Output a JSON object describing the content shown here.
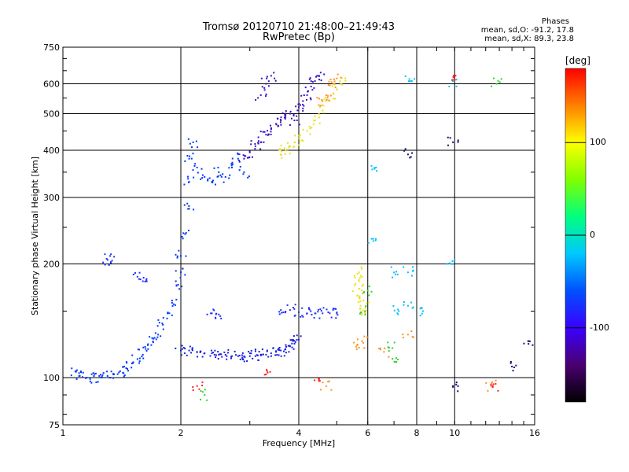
{
  "header": {
    "title_line1": "Tromsø 20120710 21:48:00–21:49:43",
    "title_line2": "RwPretec (Bp)",
    "phase_title": "Phases",
    "phase_line1": "mean, sd,O: -91.2, 17.8",
    "phase_line2": "mean, sd,X:  89.3, 23.8"
  },
  "colorbar": {
    "label": "[deg]",
    "range": [
      -180,
      180
    ],
    "ticks": [
      "100",
      "0",
      "-100"
    ],
    "tick_values": [
      100,
      0,
      -100
    ],
    "colors": [
      "#000000",
      "#4a0070",
      "#3a00ff",
      "#0050ff",
      "#00c8ff",
      "#00ff80",
      "#80ff00",
      "#ffff00",
      "#ff8000",
      "#ff0000"
    ]
  },
  "chart_data": {
    "type": "scatter",
    "title": "Tromsø 20120710 21:48:00–21:49:43 RwPretec (Bp)",
    "xlabel": "Frequency [MHz]",
    "ylabel": "Stationary phase Virtual Height [km]",
    "xscale": "log",
    "yscale": "log",
    "xlim": [
      1,
      16
    ],
    "ylim": [
      75,
      750
    ],
    "xticks": [
      1,
      2,
      4,
      6,
      8,
      10,
      16
    ],
    "xticklabels": [
      "1",
      "2",
      "4",
      "6",
      "8",
      "10",
      "16"
    ],
    "yticks": [
      75,
      100,
      200,
      300,
      400,
      500,
      600,
      750
    ],
    "yticklabels": [
      "75",
      "100",
      "200",
      "300",
      "400",
      "500",
      "600",
      "750"
    ],
    "grid": true,
    "color_meaning": "phase [deg]",
    "series": [
      {
        "color": "#0038ff",
        "points": [
          [
            1.08,
            104
          ],
          [
            1.1,
            101
          ],
          [
            1.15,
            100
          ],
          [
            1.2,
            101
          ],
          [
            1.25,
            100
          ],
          [
            1.3,
            101
          ],
          [
            1.35,
            102
          ],
          [
            1.4,
            104
          ],
          [
            1.45,
            106
          ],
          [
            1.5,
            109
          ],
          [
            1.55,
            112
          ],
          [
            1.6,
            115
          ],
          [
            1.65,
            119
          ],
          [
            1.7,
            124
          ],
          [
            1.75,
            130
          ],
          [
            1.8,
            138
          ],
          [
            1.85,
            148
          ],
          [
            1.9,
            160
          ],
          [
            1.95,
            175
          ],
          [
            2.0,
            190
          ],
          [
            2.0,
            210
          ],
          [
            2.05,
            240
          ],
          [
            2.1,
            280
          ],
          [
            2.1,
            330
          ],
          [
            2.1,
            380
          ],
          [
            2.15,
            420
          ],
          [
            2.2,
            360
          ],
          [
            2.3,
            340
          ],
          [
            2.4,
            330
          ],
          [
            2.5,
            350
          ],
          [
            2.6,
            340
          ],
          [
            2.7,
            360
          ],
          [
            2.8,
            380
          ],
          [
            2.9,
            350
          ]
        ]
      },
      {
        "color": "#1a20e0",
        "points": [
          [
            2.0,
            118
          ],
          [
            2.1,
            118
          ],
          [
            2.2,
            117
          ],
          [
            2.3,
            116
          ],
          [
            2.4,
            116
          ],
          [
            2.5,
            115
          ],
          [
            2.6,
            115
          ],
          [
            2.7,
            114
          ],
          [
            2.8,
            114
          ],
          [
            2.9,
            114
          ],
          [
            3.0,
            114
          ],
          [
            3.1,
            114
          ],
          [
            3.2,
            115
          ],
          [
            3.3,
            115
          ],
          [
            3.4,
            116
          ],
          [
            3.5,
            117
          ],
          [
            3.6,
            118
          ],
          [
            3.7,
            119
          ],
          [
            3.8,
            121
          ],
          [
            3.9,
            123
          ],
          [
            4.0,
            126
          ]
        ]
      },
      {
        "color": "#2030ff",
        "points": [
          [
            2.4,
            148
          ],
          [
            2.5,
            147
          ],
          [
            3.6,
            151
          ],
          [
            3.8,
            151
          ],
          [
            4.0,
            149
          ],
          [
            4.2,
            148
          ],
          [
            4.4,
            148
          ],
          [
            4.6,
            148
          ],
          [
            4.8,
            148
          ],
          [
            5.0,
            148
          ],
          [
            1.3,
            205
          ],
          [
            1.32,
            210
          ],
          [
            1.55,
            185
          ],
          [
            1.6,
            180
          ]
        ]
      },
      {
        "color": "#3a10c0",
        "points": [
          [
            2.9,
            380
          ],
          [
            3.0,
            395
          ],
          [
            3.1,
            410
          ],
          [
            3.2,
            420
          ],
          [
            3.3,
            440
          ],
          [
            3.4,
            455
          ],
          [
            3.5,
            470
          ],
          [
            3.6,
            480
          ],
          [
            3.7,
            490
          ],
          [
            3.8,
            500
          ],
          [
            3.9,
            480
          ],
          [
            4.0,
            520
          ],
          [
            4.1,
            540
          ],
          [
            4.2,
            560
          ],
          [
            4.3,
            590
          ],
          [
            4.4,
            610
          ],
          [
            4.5,
            630
          ],
          [
            3.2,
            560
          ],
          [
            3.3,
            600
          ],
          [
            3.4,
            630
          ]
        ]
      },
      {
        "color": "#e8e020",
        "points": [
          [
            3.6,
            390
          ],
          [
            3.7,
            400
          ],
          [
            3.8,
            410
          ],
          [
            3.9,
            420
          ],
          [
            4.0,
            430
          ],
          [
            4.2,
            450
          ],
          [
            4.4,
            480
          ],
          [
            4.6,
            510
          ],
          [
            4.8,
            540
          ],
          [
            5.0,
            580
          ],
          [
            5.1,
            610
          ],
          [
            5.65,
            165
          ],
          [
            5.7,
            172
          ],
          [
            5.7,
            180
          ],
          [
            5.75,
            155
          ],
          [
            5.8,
            148
          ],
          [
            5.7,
            190
          ],
          [
            5.85,
            160
          ]
        ]
      },
      {
        "color": "#ff9020",
        "points": [
          [
            4.7,
            560
          ],
          [
            4.9,
            600
          ],
          [
            5.0,
            620
          ],
          [
            4.6,
            540
          ],
          [
            5.7,
            120
          ],
          [
            5.8,
            125
          ],
          [
            6.6,
            117
          ],
          [
            7.6,
            130
          ],
          [
            4.7,
            95
          ],
          [
            12.4,
            95
          ]
        ]
      },
      {
        "color": "#00c0ff",
        "points": [
          [
            6.2,
            230
          ],
          [
            7.0,
            190
          ],
          [
            7.2,
            150
          ],
          [
            7.6,
            190
          ],
          [
            7.7,
            610
          ],
          [
            8.3,
            150
          ],
          [
            9.8,
            200
          ],
          [
            9.9,
            610
          ],
          [
            6.3,
            360
          ],
          [
            7.6,
            155
          ]
        ]
      },
      {
        "color": "#ff2020",
        "points": [
          [
            10.0,
            615
          ],
          [
            12.5,
            95
          ],
          [
            4.5,
            98
          ],
          [
            2.2,
            95
          ],
          [
            3.3,
            102
          ]
        ]
      },
      {
        "color": "#30d030",
        "points": [
          [
            2.3,
            90
          ],
          [
            5.9,
            150
          ],
          [
            6.0,
            170
          ],
          [
            6.8,
            120
          ],
          [
            7.1,
            110
          ],
          [
            12.8,
            600
          ]
        ]
      },
      {
        "color": "#101070",
        "points": [
          [
            9.9,
            420
          ],
          [
            9.9,
            95
          ],
          [
            14.0,
            107
          ],
          [
            15.4,
            125
          ],
          [
            7.6,
            390
          ]
        ]
      }
    ]
  }
}
